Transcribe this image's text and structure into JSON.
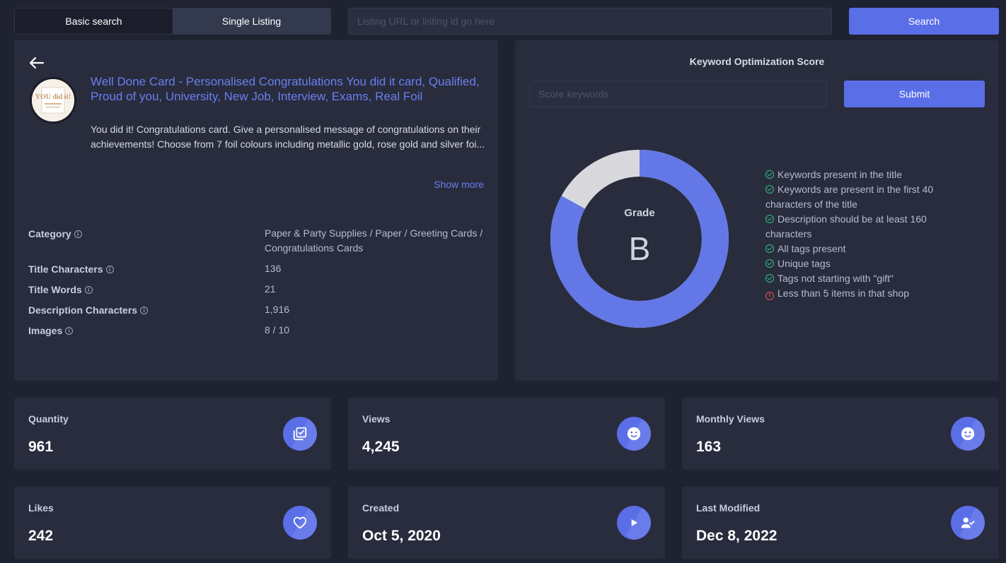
{
  "topbar": {
    "tabs": [
      {
        "label": "Basic search"
      },
      {
        "label": "Single Listing"
      }
    ],
    "listing_placeholder": "Listing URL or listing id go here",
    "search_label": "Search"
  },
  "listing": {
    "thumbnail_text": "YOU did it!",
    "title": "Well Done Card - Personalised Congratulations You did it card, Qualified, Proud of you, University, New Job, Interview, Exams, Real Foil",
    "description": "You did it! Congratulations card. Give a personalised message of congratulations on their achievements! Choose from 7 foil colours including metallic gold, rose gold and silver foi...",
    "show_more": "Show more",
    "details": [
      {
        "label": "Category",
        "value": "Paper & Party Supplies / Paper / Greeting Cards / Congratulations Cards"
      },
      {
        "label": "Title Characters",
        "value": "136"
      },
      {
        "label": "Title Words",
        "value": "21"
      },
      {
        "label": "Description Characters",
        "value": "1,916"
      },
      {
        "label": "Images",
        "value": "8 / 10"
      }
    ]
  },
  "keyword": {
    "title": "Keyword Optimization Score",
    "input_placeholder": "Score keywords",
    "submit_label": "Submit",
    "grade_label": "Grade",
    "grade": "B",
    "score_fraction": 0.83,
    "colors": {
      "filled": "#6378e6",
      "remaining": "#d9d9dd"
    },
    "checks": [
      {
        "text": "Keywords present in the title",
        "ok": true
      },
      {
        "text": "Keywords are present in the first 40 characters of the title",
        "ok": true
      },
      {
        "text": "Description should be at least 160 characters",
        "ok": true
      },
      {
        "text": "All tags present",
        "ok": true
      },
      {
        "text": "Unique tags",
        "ok": true
      },
      {
        "text": "Tags not starting with \"gift\"",
        "ok": true
      },
      {
        "text": "Less than 5 items in that shop",
        "ok": false
      }
    ]
  },
  "stats": [
    {
      "label": "Quantity",
      "value": "961",
      "icon": "checklist-icon"
    },
    {
      "label": "Views",
      "value": "4,245",
      "icon": "smile-wink-icon"
    },
    {
      "label": "Monthly Views",
      "value": "163",
      "icon": "smile-icon"
    },
    {
      "label": "Likes",
      "value": "242",
      "icon": "heart-icon"
    },
    {
      "label": "Created",
      "value": "Oct 5, 2020",
      "icon": "play-icon"
    },
    {
      "label": "Last Modified",
      "value": "Dec 8, 2022",
      "icon": "user-check-icon"
    }
  ]
}
